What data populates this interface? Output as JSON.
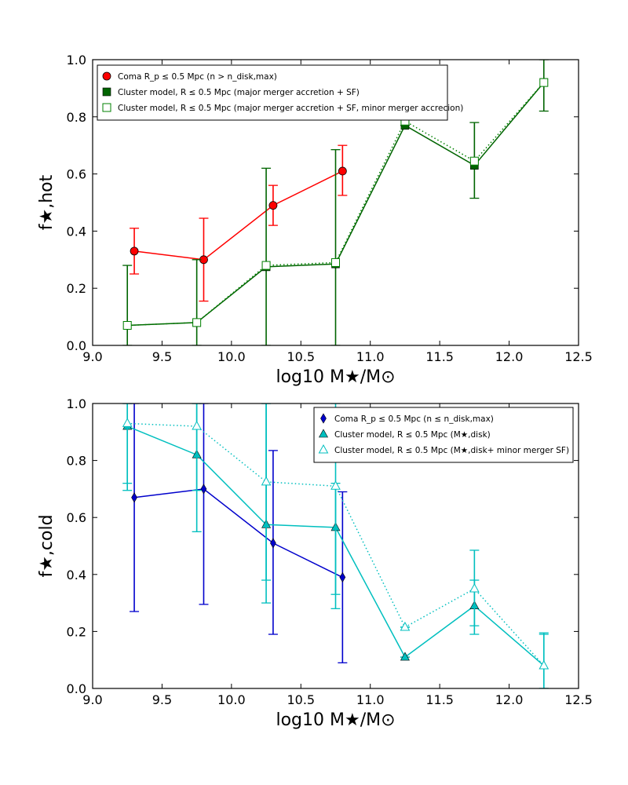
{
  "chart_data": [
    {
      "type": "line",
      "xlabel": "log10 M★/M⊙",
      "ylabel": "f★,hot",
      "xlim": [
        9.0,
        12.5
      ],
      "ylim": [
        0.0,
        1.0
      ],
      "xticks": [
        "9.0",
        "9.5",
        "10.0",
        "10.5",
        "11.0",
        "11.5",
        "12.0",
        "12.5"
      ],
      "yticks": [
        "0.0",
        "0.2",
        "0.4",
        "0.6",
        "0.8",
        "1.0"
      ],
      "legend_position": "top-left",
      "series": [
        {
          "name": "Coma R_p ≤ 0.5 Mpc (n > n_disk,max)",
          "color": "#ff0000",
          "marker": "circle",
          "linestyle": "solid",
          "x": [
            9.3,
            9.8,
            10.3,
            10.8
          ],
          "y": [
            0.33,
            0.3,
            0.49,
            0.61
          ],
          "yerr_low": [
            0.25,
            0.155,
            0.42,
            0.525
          ],
          "yerr_high": [
            0.41,
            0.445,
            0.56,
            0.7
          ]
        },
        {
          "name": "Cluster model, R ≤ 0.5 Mpc (major merger accretion + SF)",
          "color": "#006400",
          "marker": "square-filled",
          "linestyle": "solid",
          "x": [
            9.25,
            9.75,
            10.25,
            10.75,
            11.25,
            11.75,
            12.25
          ],
          "y": [
            0.07,
            0.08,
            0.275,
            0.285,
            0.77,
            0.63,
            0.92
          ],
          "yerr_low": [
            0.0,
            0.0,
            0.0,
            0.0,
            0.77,
            0.515,
            0.82
          ],
          "yerr_high": [
            0.28,
            0.3,
            0.62,
            0.685,
            0.79,
            0.78,
            1.0
          ]
        },
        {
          "name": "Cluster model, R ≤ 0.5 Mpc (major merger accretion + SF, minor merger accrecion)",
          "color": "#008000",
          "marker": "square-open",
          "linestyle": "dotted",
          "x": [
            9.25,
            9.75,
            10.25,
            10.75,
            11.25,
            11.75,
            12.25
          ],
          "y": [
            0.07,
            0.08,
            0.28,
            0.29,
            0.785,
            0.645,
            0.92
          ]
        }
      ]
    },
    {
      "type": "line",
      "xlabel": "log10 M★/M⊙",
      "ylabel": "f★,cold",
      "xlim": [
        9.0,
        12.5
      ],
      "ylim": [
        0.0,
        1.0
      ],
      "xticks": [
        "9.0",
        "9.5",
        "10.0",
        "10.5",
        "11.0",
        "11.5",
        "12.0",
        "12.5"
      ],
      "yticks": [
        "0.0",
        "0.2",
        "0.4",
        "0.6",
        "0.8",
        "1.0"
      ],
      "legend_position": "top-right",
      "series": [
        {
          "name": "Coma R_p ≤ 0.5 Mpc (n ≤ n_disk,max)",
          "color": "#0000cc",
          "marker": "diamond",
          "linestyle": "solid",
          "x": [
            9.3,
            9.8,
            10.3,
            10.8
          ],
          "y": [
            0.67,
            0.7,
            0.51,
            0.39
          ],
          "yerr_low": [
            0.27,
            0.295,
            0.19,
            0.09
          ],
          "yerr_high": [
            1.0,
            1.0,
            0.835,
            0.69
          ]
        },
        {
          "name": "Cluster model, R ≤ 0.5 Mpc (M★,disk)",
          "color": "#00bfbf",
          "marker": "triangle-filled",
          "linestyle": "solid",
          "x": [
            9.25,
            9.75,
            10.25,
            10.75,
            11.25,
            11.75,
            12.25
          ],
          "y": [
            0.92,
            0.82,
            0.575,
            0.565,
            0.11,
            0.29,
            0.08
          ],
          "yerr_low": [
            0.72,
            0.55,
            0.3,
            0.28,
            0.11,
            0.19,
            0.0
          ],
          "yerr_high": [
            1.0,
            1.0,
            1.0,
            0.72,
            0.11,
            0.38,
            0.19
          ]
        },
        {
          "name": "Cluster model, R ≤ 0.5 Mpc (M★,disk+ minor merger SF)",
          "color": "#00bfbf",
          "marker": "triangle-open",
          "linestyle": "dotted",
          "x": [
            9.25,
            9.75,
            10.25,
            10.75,
            11.25,
            11.75,
            12.25
          ],
          "y": [
            0.93,
            0.92,
            0.725,
            0.71,
            0.215,
            0.35,
            0.08
          ],
          "yerr_low": [
            0.695,
            0.695,
            0.38,
            0.33,
            0.215,
            0.22,
            0.0
          ],
          "yerr_high": [
            1.0,
            1.0,
            1.0,
            1.0,
            0.215,
            0.485,
            0.195
          ]
        }
      ]
    }
  ]
}
